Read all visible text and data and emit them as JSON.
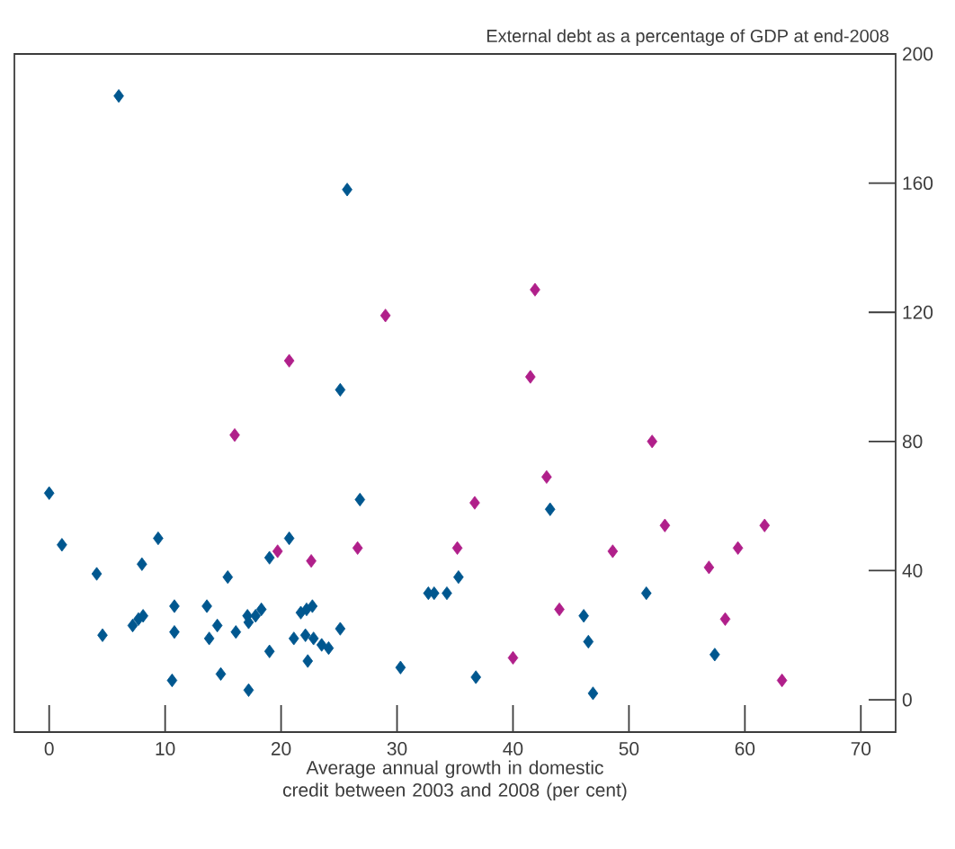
{
  "chart_data": {
    "type": "scatter",
    "xlabel": "Average annual growth in domestic credit between 2003 and 2008 (per cent)",
    "ylabel": "External debt as a percentage of GDP at end-2008",
    "xlim": [
      -3,
      73
    ],
    "xticks": [
      0,
      10,
      20,
      30,
      40,
      50,
      60,
      70
    ],
    "ylim": [
      -10,
      200
    ],
    "yticks": [
      0,
      40,
      80,
      120,
      160,
      200
    ],
    "grid": false,
    "marker": "diamond",
    "series": [
      {
        "color": "#00578f",
        "x": [
          6.0,
          25.7,
          25.1,
          0,
          1.1,
          4.1,
          4.6,
          8.0,
          7.2,
          7.7,
          8.1,
          9.4,
          10.8,
          10.8,
          10.6,
          13.6,
          14.5,
          13.8,
          14.8,
          15.4,
          16.1,
          17.2,
          17.1,
          17.2,
          17.8,
          18.3,
          19.0,
          19.0,
          20.7,
          21.7,
          22.2,
          22.7,
          21.1,
          22.1,
          22.3,
          22.8,
          23.5,
          24.1,
          25.1,
          26.8,
          30.3,
          32.7,
          33.2,
          34.3,
          35.3,
          36.8,
          43.2,
          46.1,
          46.5,
          46.9,
          51.5,
          57.4
        ],
        "values": [
          187,
          158,
          96,
          64,
          48,
          39,
          20,
          42,
          23,
          25,
          26,
          50,
          29,
          21,
          6,
          29,
          23,
          19,
          8,
          38,
          21,
          3,
          26,
          24,
          26,
          28,
          15,
          44,
          50,
          27,
          28,
          29,
          19,
          20,
          12,
          19,
          17,
          16,
          22,
          62,
          10,
          33,
          33,
          33,
          38,
          7,
          59,
          26,
          18,
          2,
          33,
          14
        ]
      },
      {
        "color": "#b01f8a",
        "x": [
          29.0,
          20.7,
          41.9,
          41.5,
          16.0,
          19.7,
          22.6,
          26.6,
          35.2,
          36.7,
          52.0,
          42.9,
          53.1,
          48.6,
          56.9,
          59.4,
          61.7,
          44.0,
          58.3,
          40.0,
          63.2
        ],
        "values": [
          119,
          105,
          127,
          100,
          82,
          46,
          43,
          47,
          47,
          61,
          80,
          69,
          54,
          46,
          41,
          47,
          54,
          28,
          25,
          13,
          6
        ]
      }
    ]
  }
}
